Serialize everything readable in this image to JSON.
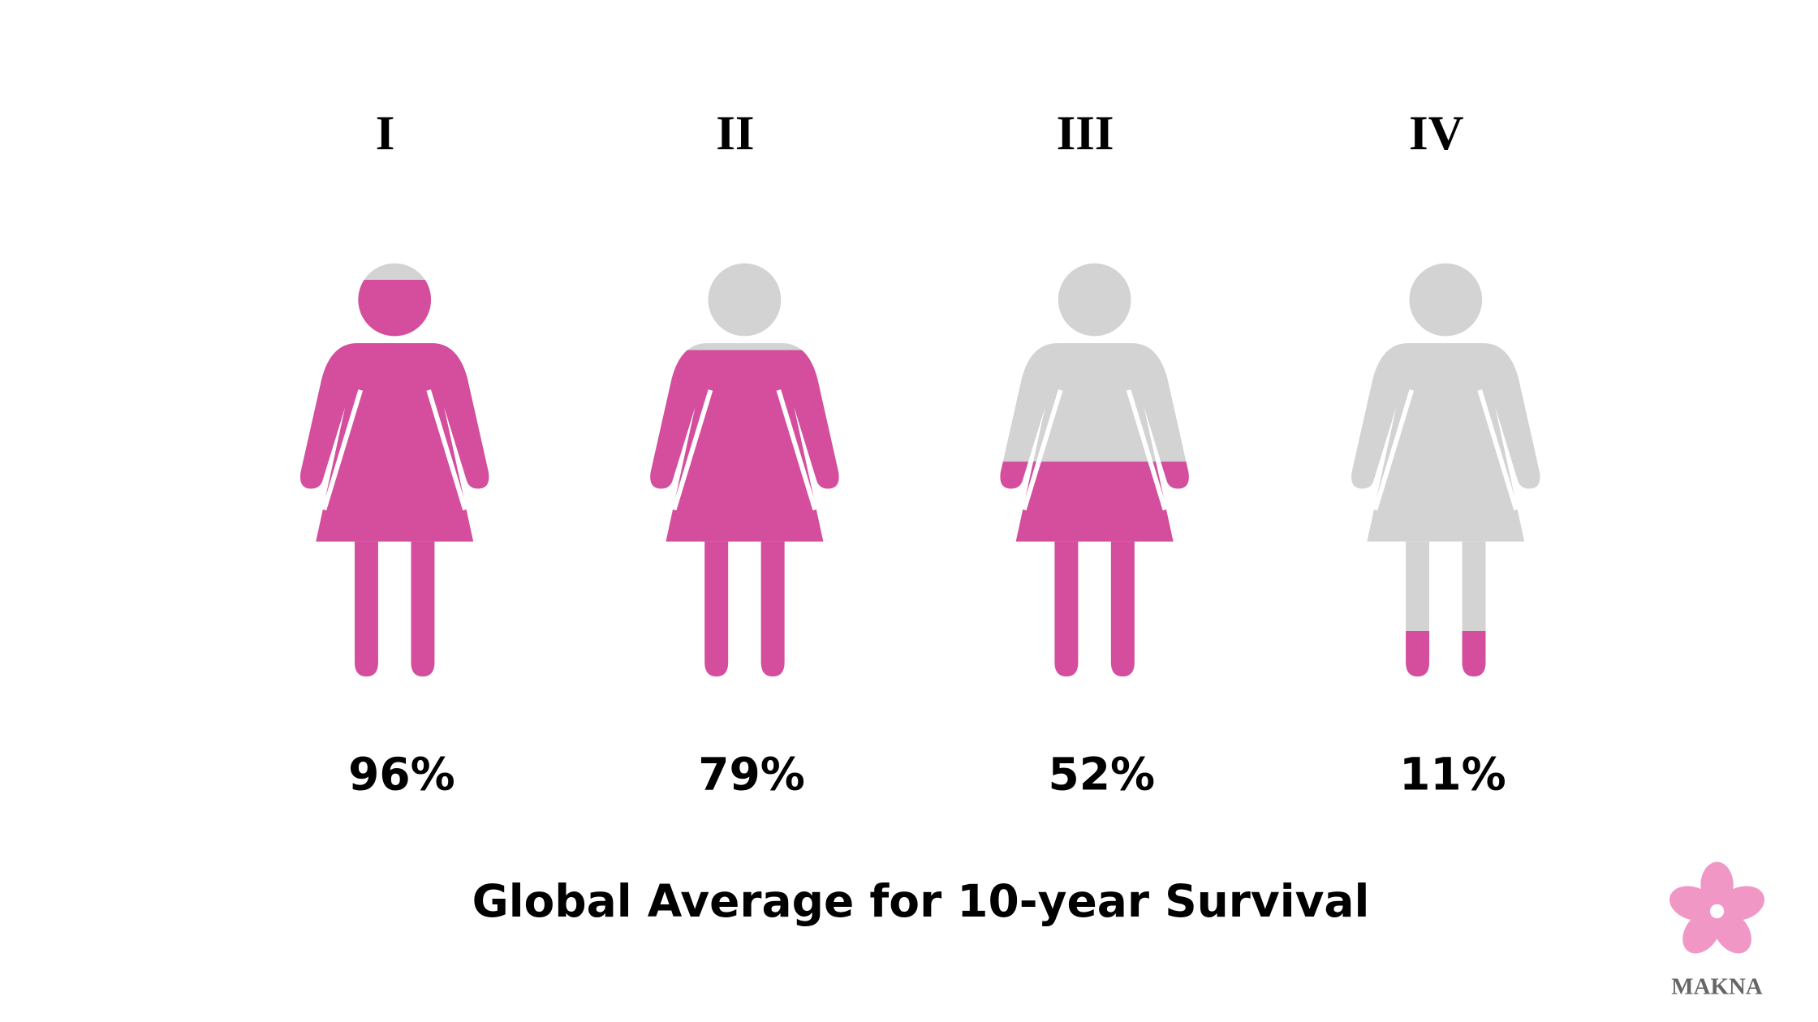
{
  "chart_data": {
    "type": "pictogram",
    "title": "Global Average for 10-year Survival",
    "categories": [
      "I",
      "II",
      "III",
      "IV"
    ],
    "values": [
      96,
      79,
      52,
      11
    ],
    "value_labels": [
      "96%",
      "79%",
      "52%",
      "11%"
    ],
    "color": "#d54e9d",
    "empty_color": "#d3d3d3"
  },
  "logo": {
    "text": "MAKNA"
  }
}
